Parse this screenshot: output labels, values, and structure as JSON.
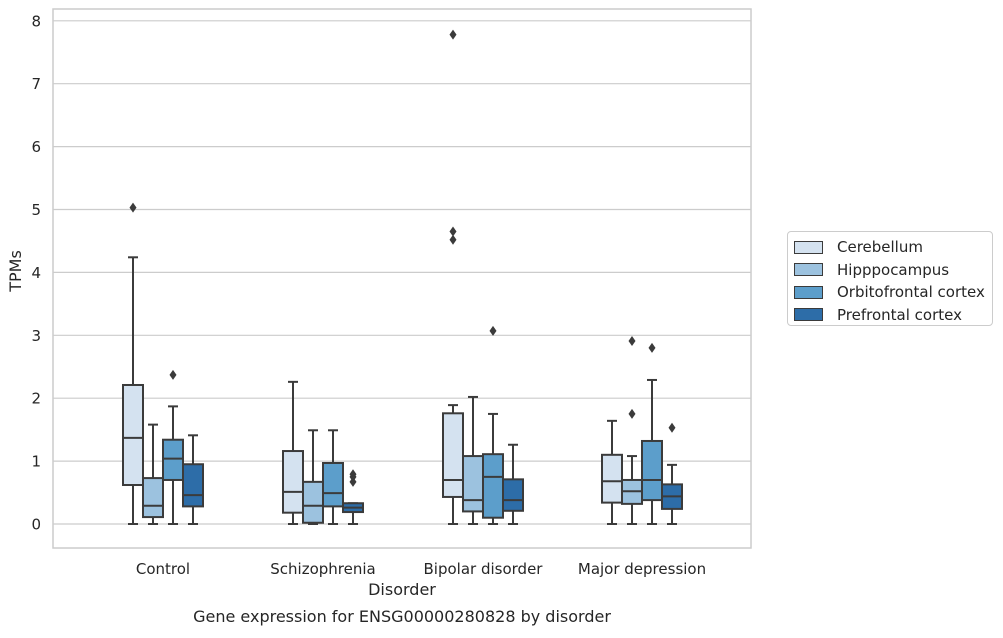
{
  "chart_data": {
    "type": "boxplot",
    "title": "Gene expression for ENSG00000280828 by disorder",
    "xlabel": "Disorder",
    "ylabel": "TPMs",
    "ylim": [
      -0.38,
      8.18
    ],
    "yticks": [
      0,
      1,
      2,
      3,
      4,
      5,
      6,
      7,
      8
    ],
    "grid": true,
    "legend_position": "right",
    "categories": [
      "Control",
      "Schizophrenia",
      "Bipolar disorder",
      "Major depression"
    ],
    "series": [
      {
        "name": "Cerebellum",
        "color": "#d4e2f0",
        "boxes": [
          {
            "whislo": 0.0,
            "q1": 0.62,
            "med": 1.37,
            "q3": 2.21,
            "whishi": 4.24,
            "fliers": [
              5.03
            ]
          },
          {
            "whislo": 0.0,
            "q1": 0.18,
            "med": 0.51,
            "q3": 1.16,
            "whishi": 2.26,
            "fliers": []
          },
          {
            "whislo": 0.0,
            "q1": 0.43,
            "med": 0.7,
            "q3": 1.76,
            "whishi": 1.89,
            "fliers": [
              4.52,
              4.65,
              7.78
            ]
          },
          {
            "whislo": 0.0,
            "q1": 0.34,
            "med": 0.68,
            "q3": 1.1,
            "whishi": 1.64,
            "fliers": []
          }
        ]
      },
      {
        "name": "Hipppocampus",
        "color": "#9cc2df",
        "boxes": [
          {
            "whislo": 0.0,
            "q1": 0.11,
            "med": 0.29,
            "q3": 0.73,
            "whishi": 1.58,
            "fliers": []
          },
          {
            "whislo": 0.0,
            "q1": 0.02,
            "med": 0.29,
            "q3": 0.67,
            "whishi": 1.49,
            "fliers": []
          },
          {
            "whislo": 0.0,
            "q1": 0.2,
            "med": 0.38,
            "q3": 1.08,
            "whishi": 2.02,
            "fliers": []
          },
          {
            "whislo": 0.0,
            "q1": 0.32,
            "med": 0.52,
            "q3": 0.7,
            "whishi": 1.08,
            "fliers": [
              1.75,
              2.91
            ]
          }
        ]
      },
      {
        "name": "Orbitofrontal cortex",
        "color": "#5c9ecb",
        "boxes": [
          {
            "whislo": 0.0,
            "q1": 0.7,
            "med": 1.04,
            "q3": 1.34,
            "whishi": 1.87,
            "fliers": [
              2.37
            ]
          },
          {
            "whislo": 0.0,
            "q1": 0.28,
            "med": 0.49,
            "q3": 0.97,
            "whishi": 1.49,
            "fliers": []
          },
          {
            "whislo": 0.0,
            "q1": 0.1,
            "med": 0.75,
            "q3": 1.11,
            "whishi": 1.75,
            "fliers": [
              3.07
            ]
          },
          {
            "whislo": 0.0,
            "q1": 0.38,
            "med": 0.7,
            "q3": 1.32,
            "whishi": 2.29,
            "fliers": [
              2.8
            ]
          }
        ]
      },
      {
        "name": "Prefrontal cortex",
        "color": "#2d6da8",
        "boxes": [
          {
            "whislo": 0.0,
            "q1": 0.28,
            "med": 0.46,
            "q3": 0.95,
            "whishi": 1.41,
            "fliers": []
          },
          {
            "whislo": 0.0,
            "q1": 0.19,
            "med": 0.26,
            "q3": 0.33,
            "whishi": 0.33,
            "fliers": [
              0.67,
              0.75,
              0.79
            ]
          },
          {
            "whislo": 0.0,
            "q1": 0.21,
            "med": 0.38,
            "q3": 0.71,
            "whishi": 1.26,
            "fliers": []
          },
          {
            "whislo": 0.0,
            "q1": 0.24,
            "med": 0.44,
            "q3": 0.63,
            "whishi": 0.94,
            "fliers": [
              1.53
            ]
          }
        ]
      }
    ]
  }
}
